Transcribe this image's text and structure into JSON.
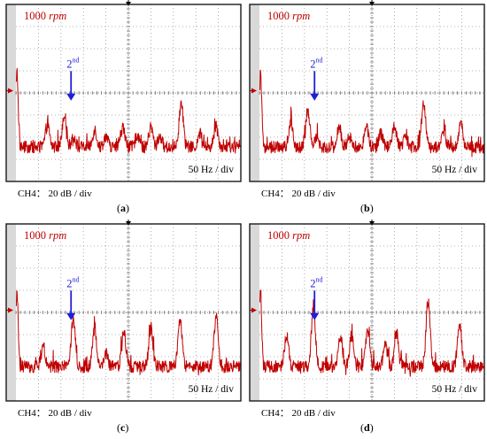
{
  "colors": {
    "trace": "#c00000",
    "arrow": "#1f1fd6",
    "grid": "#9a9a9a",
    "frame": "#1a1a1a"
  },
  "chart_data": [
    {
      "type": "line",
      "panel_label": "a",
      "speed_value": "1000",
      "speed_unit": "rpm",
      "harmonic_number": "2",
      "harmonic_suffix": "nd",
      "x_scale_text": "50 Hz / div",
      "y_scale_text": "CH4： 20 dB / div",
      "x_divisions": 10,
      "y_divisions": 8,
      "peaks_div": [
        {
          "x": 0.05,
          "h": 3.4
        },
        {
          "x": 1.4,
          "h": 1.0
        },
        {
          "x": 2.15,
          "h": 1.5
        },
        {
          "x": 2.55,
          "h": 0.5
        },
        {
          "x": 3.5,
          "h": 0.8
        },
        {
          "x": 4.0,
          "h": 0.5
        },
        {
          "x": 4.75,
          "h": 0.9
        },
        {
          "x": 5.4,
          "h": 0.6
        },
        {
          "x": 6.0,
          "h": 0.9
        },
        {
          "x": 6.4,
          "h": 0.5
        },
        {
          "x": 7.35,
          "h": 2.0
        },
        {
          "x": 8.2,
          "h": 0.6
        },
        {
          "x": 8.9,
          "h": 1.0
        }
      ]
    },
    {
      "type": "line",
      "panel_label": "b",
      "speed_value": "1000",
      "speed_unit": "rpm",
      "harmonic_number": "2",
      "harmonic_suffix": "nd",
      "x_scale_text": "50 Hz / div",
      "y_scale_text": "CH4： 20 dB / div",
      "x_divisions": 10,
      "y_divisions": 8,
      "peaks_div": [
        {
          "x": 0.05,
          "h": 3.4
        },
        {
          "x": 1.4,
          "h": 1.2
        },
        {
          "x": 2.15,
          "h": 1.7
        },
        {
          "x": 2.55,
          "h": 0.5
        },
        {
          "x": 3.55,
          "h": 0.9
        },
        {
          "x": 4.0,
          "h": 0.5
        },
        {
          "x": 4.75,
          "h": 1.0
        },
        {
          "x": 5.4,
          "h": 0.6
        },
        {
          "x": 6.0,
          "h": 0.9
        },
        {
          "x": 6.5,
          "h": 0.6
        },
        {
          "x": 7.3,
          "h": 1.9
        },
        {
          "x": 8.2,
          "h": 0.7
        },
        {
          "x": 8.95,
          "h": 1.1
        }
      ]
    },
    {
      "type": "line",
      "panel_label": "c",
      "speed_value": "1000",
      "speed_unit": "rpm",
      "harmonic_number": "2",
      "harmonic_suffix": "nd",
      "x_scale_text": "50 Hz / div",
      "y_scale_text": "CH4： 20 dB / div",
      "x_divisions": 10,
      "y_divisions": 8,
      "peaks_div": [
        {
          "x": 0.05,
          "h": 3.4
        },
        {
          "x": 1.2,
          "h": 1.0
        },
        {
          "x": 2.55,
          "h": 2.1
        },
        {
          "x": 3.5,
          "h": 1.7
        },
        {
          "x": 4.0,
          "h": 0.6
        },
        {
          "x": 4.8,
          "h": 1.6
        },
        {
          "x": 6.0,
          "h": 1.7
        },
        {
          "x": 7.3,
          "h": 2.0
        },
        {
          "x": 8.9,
          "h": 2.2
        }
      ]
    },
    {
      "type": "line",
      "panel_label": "d",
      "speed_value": "1000",
      "speed_unit": "rpm",
      "harmonic_number": "2",
      "harmonic_suffix": "nd",
      "x_scale_text": "50 Hz / div",
      "y_scale_text": "CH4： 20 dB / div",
      "x_divisions": 10,
      "y_divisions": 8,
      "peaks_div": [
        {
          "x": 0.05,
          "h": 3.4
        },
        {
          "x": 1.2,
          "h": 1.4
        },
        {
          "x": 2.4,
          "h": 2.6
        },
        {
          "x": 3.6,
          "h": 1.4
        },
        {
          "x": 4.1,
          "h": 1.4
        },
        {
          "x": 4.8,
          "h": 1.6
        },
        {
          "x": 5.6,
          "h": 1.0
        },
        {
          "x": 6.1,
          "h": 1.5
        },
        {
          "x": 7.5,
          "h": 3.0
        },
        {
          "x": 8.9,
          "h": 1.9
        }
      ]
    }
  ]
}
